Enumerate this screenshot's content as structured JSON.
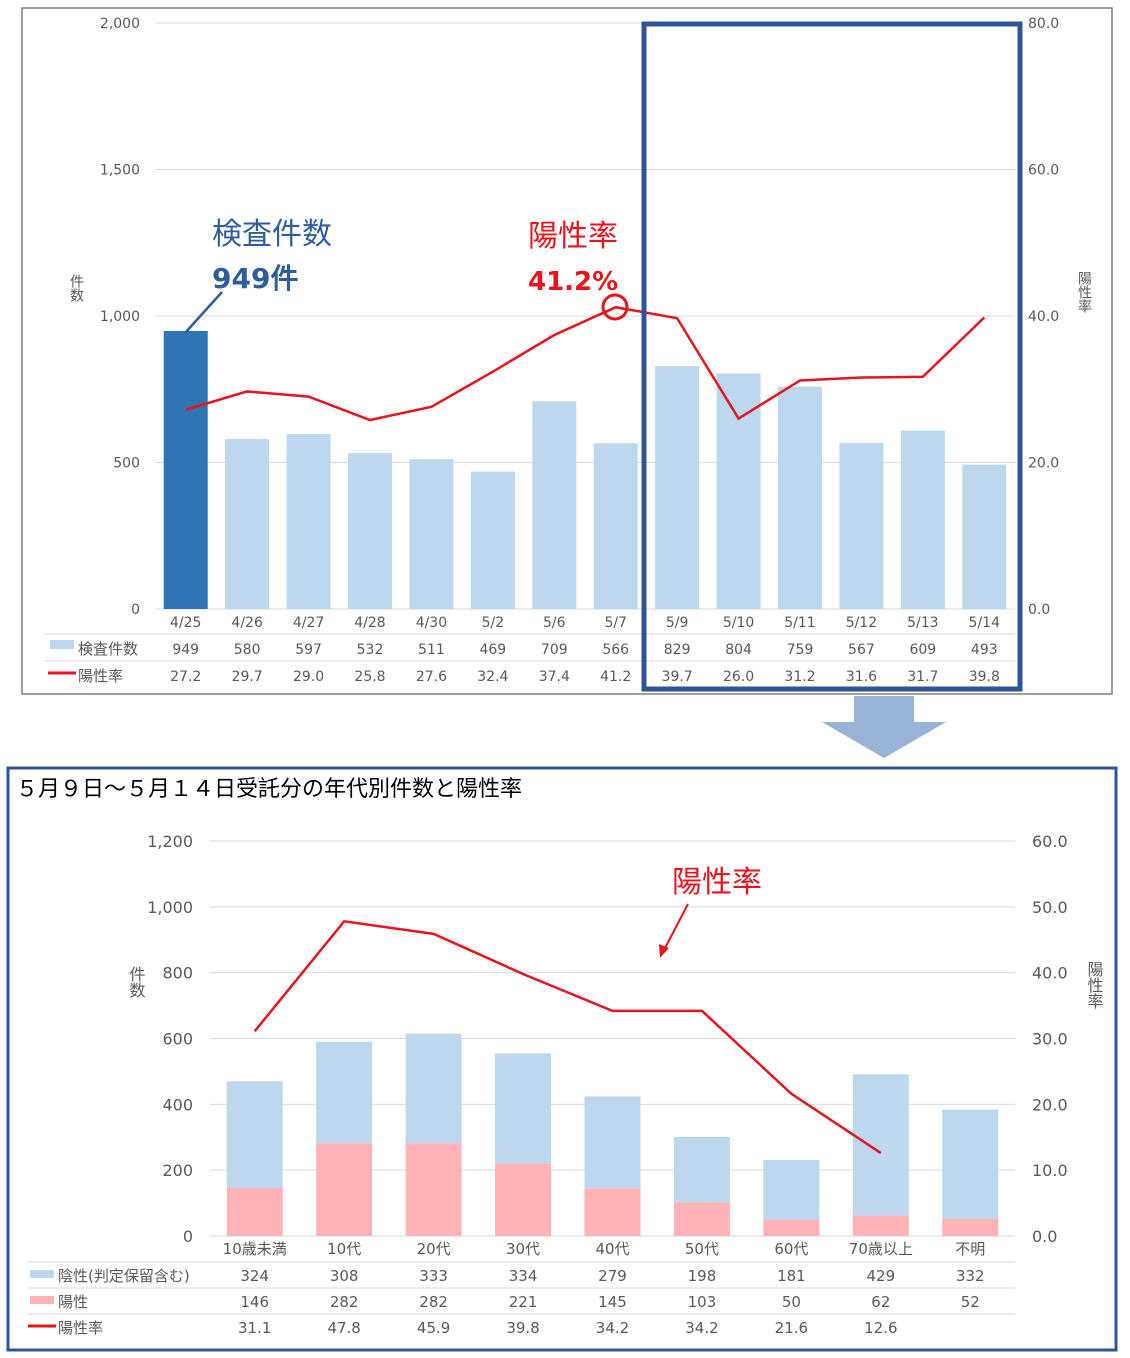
{
  "colors": {
    "bar": "#bdd7ee",
    "bar_highlight": "#2e75b6",
    "positive_bar": "#ffb3b7",
    "line": "#e8141c",
    "grid": "#d9d9d9",
    "frame": "#2f5597",
    "annot_blue": "#2e5d9c",
    "annot_red": "#e8141c",
    "down_arrow": "#98b3d6",
    "axis_text": "#595959"
  },
  "top_annotations": {
    "count_title": "検査件数",
    "count_value": "949件",
    "rate_title": "陽性率",
    "rate_value": "41.2%"
  },
  "bottom_annotations": {
    "rate_label": "陽性率"
  },
  "chart_data": [
    {
      "type": "bar",
      "ylabel": "件数",
      "y2label": "陽性率",
      "ylim": [
        0,
        2000
      ],
      "y2lim": [
        0,
        80
      ],
      "yticks": [
        "0",
        "500",
        "1,000",
        "1,500",
        "2,000"
      ],
      "y2ticks": [
        "0.0",
        "20.0",
        "40.0",
        "60.0",
        "80.0"
      ],
      "categories": [
        "4/25",
        "4/26",
        "4/27",
        "4/28",
        "4/30",
        "5/2",
        "5/6",
        "5/7",
        "5/9",
        "5/10",
        "5/11",
        "5/12",
        "5/13",
        "5/14"
      ],
      "series": [
        {
          "name": "検査件数",
          "type": "bar",
          "values": [
            949,
            580,
            597,
            532,
            511,
            469,
            709,
            566,
            829,
            804,
            759,
            567,
            609,
            493
          ]
        },
        {
          "name": "陽性率",
          "type": "line",
          "axis": "right",
          "values": [
            27.2,
            29.7,
            29.0,
            25.8,
            27.6,
            32.4,
            37.4,
            41.2,
            39.7,
            26.0,
            31.2,
            31.6,
            31.7,
            39.8
          ]
        }
      ],
      "table_rows": [
        {
          "label": "検査件数",
          "values": [
            "949",
            "580",
            "597",
            "532",
            "511",
            "469",
            "709",
            "566",
            "829",
            "804",
            "759",
            "567",
            "609",
            "493"
          ]
        },
        {
          "label": "陽性率",
          "values": [
            "27.2",
            "29.7",
            "29.0",
            "25.8",
            "27.6",
            "32.4",
            "37.4",
            "41.2",
            "39.7",
            "26.0",
            "31.2",
            "31.6",
            "31.7",
            "39.8"
          ]
        }
      ],
      "highlight_category": "4/25",
      "boxed_categories": [
        "5/9",
        "5/10",
        "5/11",
        "5/12",
        "5/13",
        "5/14"
      ]
    },
    {
      "type": "bar",
      "title": "５月９日～５月１４日受託分の年代別件数と陽性率",
      "ylabel": "件数",
      "y2label": "陽性率",
      "ylim": [
        0,
        1200
      ],
      "y2lim": [
        0,
        60
      ],
      "yticks": [
        "0",
        "200",
        "400",
        "600",
        "800",
        "1,000",
        "1,200"
      ],
      "y2ticks": [
        "0.0",
        "10.0",
        "20.0",
        "30.0",
        "40.0",
        "50.0",
        "60.0"
      ],
      "categories": [
        "10歳未満",
        "10代",
        "20代",
        "30代",
        "40代",
        "50代",
        "60代",
        "70歳以上",
        "不明"
      ],
      "series": [
        {
          "name": "陽性",
          "type": "stacked_bar",
          "values": [
            146,
            282,
            282,
            221,
            145,
            103,
            50,
            62,
            52
          ]
        },
        {
          "name": "陰性(判定保留含む)",
          "type": "stacked_bar",
          "values": [
            324,
            308,
            333,
            334,
            279,
            198,
            181,
            429,
            332
          ]
        },
        {
          "name": "陽性率",
          "type": "line",
          "axis": "right",
          "values": [
            31.1,
            47.8,
            45.9,
            39.8,
            34.2,
            34.2,
            21.6,
            12.6,
            null
          ]
        }
      ],
      "table_rows": [
        {
          "label": "陰性(判定保留含む)",
          "values": [
            "324",
            "308",
            "333",
            "334",
            "279",
            "198",
            "181",
            "429",
            "332"
          ]
        },
        {
          "label": "陽性",
          "values": [
            "146",
            "282",
            "282",
            "221",
            "145",
            "103",
            "50",
            "62",
            "52"
          ]
        },
        {
          "label": "陽性率",
          "values": [
            "31.1",
            "47.8",
            "45.9",
            "39.8",
            "34.2",
            "34.2",
            "21.6",
            "12.6",
            ""
          ]
        }
      ]
    }
  ]
}
